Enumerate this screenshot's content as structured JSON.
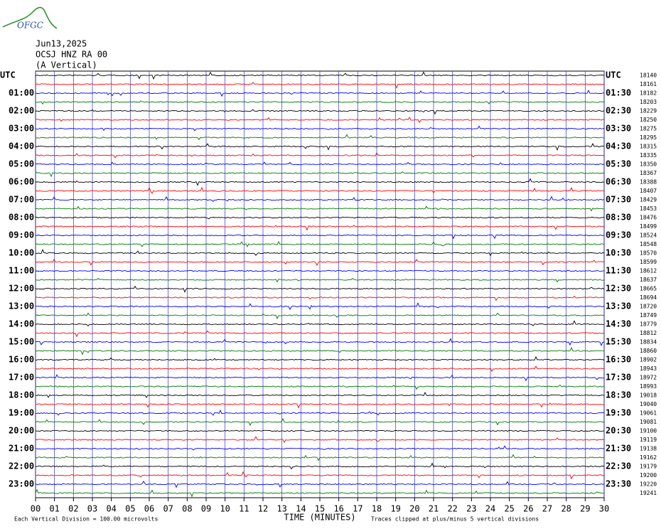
{
  "header": {
    "logo": "OFGC",
    "date": "Jun13,2025",
    "station": "OCSJ HNZ RA 00",
    "component": "(A Vertical)"
  },
  "left_labels": [
    "UTC",
    "01:00",
    "02:00",
    "03:00",
    "04:00",
    "05:00",
    "06:00",
    "07:00",
    "08:00",
    "09:00",
    "10:00",
    "11:00",
    "12:00",
    "13:00",
    "14:00",
    "15:00",
    "16:00",
    "17:00",
    "18:00",
    "19:00",
    "20:00",
    "21:00",
    "22:00",
    "23:00"
  ],
  "right_labels": [
    "UTC",
    "01:30",
    "02:30",
    "03:30",
    "04:30",
    "05:30",
    "06:30",
    "07:30",
    "08:30",
    "09:30",
    "10:30",
    "11:30",
    "12:30",
    "13:30",
    "14:30",
    "15:30",
    "16:30",
    "17:30",
    "18:30",
    "19:30",
    "20:30",
    "21:30",
    "22:30",
    "23:30"
  ],
  "row_counts": [
    "18140",
    "18161",
    "18182",
    "18203",
    "18229",
    "18250",
    "18275",
    "18295",
    "18315",
    "18335",
    "18350",
    "18367",
    "18388",
    "18407",
    "18429",
    "18453",
    "18476",
    "18499",
    "18524",
    "18548",
    "18570",
    "18599",
    "18612",
    "18637",
    "18665",
    "18694",
    "18720",
    "18749",
    "18779",
    "18812",
    "18834",
    "18860",
    "18902",
    "18943",
    "18972",
    "18993",
    "19018",
    "19040",
    "19061",
    "19081",
    "19100",
    "19119",
    "19138",
    "19162",
    "19179",
    "19200",
    "19220",
    "19241"
  ],
  "x_axis": {
    "ticks": [
      "00",
      "01",
      "02",
      "03",
      "04",
      "05",
      "06",
      "07",
      "08",
      "09",
      "10",
      "11",
      "12",
      "13",
      "14",
      "15",
      "16",
      "17",
      "18",
      "19",
      "20",
      "21",
      "22",
      "23",
      "24",
      "25",
      "26",
      "27",
      "28",
      "29",
      "30"
    ],
    "title": "TIME (MINUTES)"
  },
  "footer": {
    "division": "Each Vertical Division =  100.00 microvolts",
    "clipping": "Traces clipped at plus/minus 5 vertical divisions"
  },
  "trace_colors": [
    "#000000",
    "#ff0000",
    "#0000ff",
    "#007700"
  ]
}
